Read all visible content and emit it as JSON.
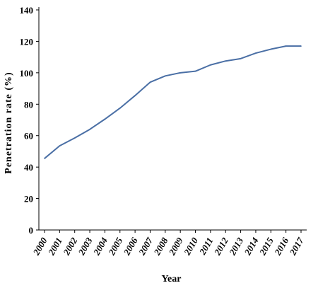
{
  "chart_data": {
    "type": "line",
    "title": "",
    "xlabel": "Year",
    "ylabel": "Penetration rate (%)",
    "x": [
      "2000",
      "2001",
      "2002",
      "2003",
      "2004",
      "2005",
      "2006",
      "2007",
      "2008",
      "2009",
      "2010",
      "2011",
      "2012",
      "2013",
      "2014",
      "2015",
      "2016",
      "2017"
    ],
    "series": [
      {
        "values": [
          45.5,
          53.5,
          58.5,
          64,
          70.5,
          77.5,
          85.5,
          94,
          98,
          100,
          101,
          105,
          107.5,
          109,
          112.5,
          115,
          117,
          117
        ],
        "color": "#4a6fa5"
      }
    ],
    "ylim": [
      0,
      140
    ],
    "yticks": [
      0,
      20,
      40,
      60,
      80,
      100,
      120,
      140
    ],
    "grid": false,
    "legend": "none"
  }
}
